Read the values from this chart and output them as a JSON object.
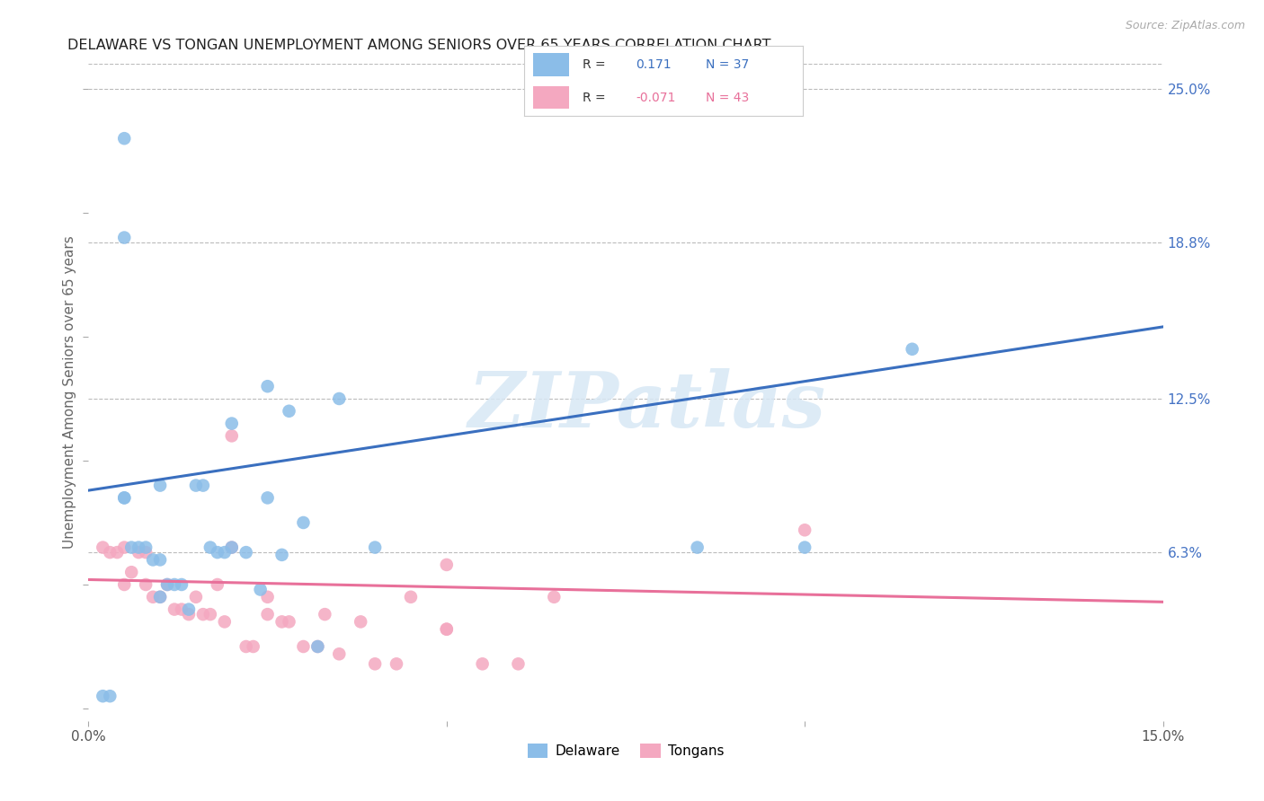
{
  "title": "DELAWARE VS TONGAN UNEMPLOYMENT AMONG SENIORS OVER 65 YEARS CORRELATION CHART",
  "source": "Source: ZipAtlas.com",
  "ylabel": "Unemployment Among Seniors over 65 years",
  "xlim": [
    0.0,
    0.15
  ],
  "ylim": [
    -0.005,
    0.26
  ],
  "x_ticks": [
    0.0,
    0.05,
    0.1,
    0.15
  ],
  "x_tick_labels": [
    "0.0%",
    "",
    "",
    "15.0%"
  ],
  "y_tick_labels_right": [
    "6.3%",
    "12.5%",
    "18.8%",
    "25.0%"
  ],
  "y_ticks_right": [
    0.063,
    0.125,
    0.188,
    0.25
  ],
  "delaware_R": 0.171,
  "delaware_N": 37,
  "tongan_R": -0.071,
  "tongan_N": 43,
  "delaware_color": "#8BBDE8",
  "tongan_color": "#F4A8C0",
  "delaware_line_color": "#3A6FBF",
  "tongan_line_color": "#E8709A",
  "background_color": "#FFFFFF",
  "grid_color": "#BBBBBB",
  "watermark": "ZIPatlas",
  "delaware_x": [
    0.002,
    0.003,
    0.005,
    0.005,
    0.005,
    0.006,
    0.007,
    0.008,
    0.009,
    0.01,
    0.01,
    0.01,
    0.011,
    0.012,
    0.013,
    0.014,
    0.015,
    0.016,
    0.017,
    0.018,
    0.019,
    0.02,
    0.02,
    0.022,
    0.024,
    0.025,
    0.025,
    0.027,
    0.028,
    0.03,
    0.032,
    0.035,
    0.04,
    0.085,
    0.1,
    0.115,
    0.005
  ],
  "delaware_y": [
    0.005,
    0.005,
    0.23,
    0.085,
    0.085,
    0.065,
    0.065,
    0.065,
    0.06,
    0.06,
    0.09,
    0.045,
    0.05,
    0.05,
    0.05,
    0.04,
    0.09,
    0.09,
    0.065,
    0.063,
    0.063,
    0.065,
    0.115,
    0.063,
    0.048,
    0.13,
    0.085,
    0.062,
    0.12,
    0.075,
    0.025,
    0.125,
    0.065,
    0.065,
    0.065,
    0.145,
    0.19
  ],
  "tongan_x": [
    0.002,
    0.003,
    0.004,
    0.005,
    0.005,
    0.006,
    0.007,
    0.008,
    0.008,
    0.009,
    0.01,
    0.011,
    0.012,
    0.013,
    0.014,
    0.015,
    0.016,
    0.017,
    0.018,
    0.019,
    0.02,
    0.02,
    0.022,
    0.023,
    0.025,
    0.025,
    0.027,
    0.028,
    0.03,
    0.032,
    0.033,
    0.035,
    0.038,
    0.04,
    0.043,
    0.045,
    0.05,
    0.05,
    0.05,
    0.055,
    0.06,
    0.065,
    0.1
  ],
  "tongan_y": [
    0.065,
    0.063,
    0.063,
    0.065,
    0.05,
    0.055,
    0.063,
    0.063,
    0.05,
    0.045,
    0.045,
    0.05,
    0.04,
    0.04,
    0.038,
    0.045,
    0.038,
    0.038,
    0.05,
    0.035,
    0.065,
    0.11,
    0.025,
    0.025,
    0.045,
    0.038,
    0.035,
    0.035,
    0.025,
    0.025,
    0.038,
    0.022,
    0.035,
    0.018,
    0.018,
    0.045,
    0.058,
    0.032,
    0.032,
    0.018,
    0.018,
    0.045,
    0.072
  ],
  "del_line_x0": 0.0,
  "del_line_y0": 0.088,
  "del_line_x1": 0.15,
  "del_line_y1": 0.154,
  "ton_line_x0": 0.0,
  "ton_line_y0": 0.052,
  "ton_line_x1": 0.15,
  "ton_line_y1": 0.043
}
